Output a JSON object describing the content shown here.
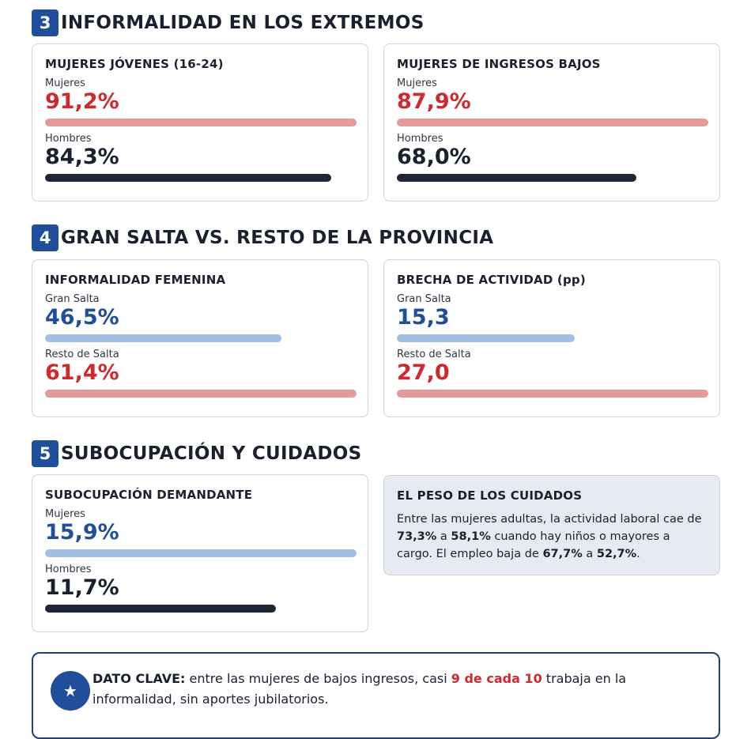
{
  "sections": [
    {
      "number": "3",
      "title": "INFORMALIDAD EN LOS EXTREMOS"
    },
    {
      "number": "4",
      "title": "GRAN SALTA VS. RESTO DE LA PROVINCIA"
    },
    {
      "number": "5",
      "title": "SUBOCUPACIÓN Y CUIDADOS"
    }
  ],
  "cards": {
    "young_women": {
      "title": "MUJERES JÓVENES (16-24)",
      "rows": [
        {
          "label": "Mujeres",
          "value": "91,2%",
          "bar_fraction": 1.0,
          "color": "#d1282d"
        },
        {
          "label": "Hombres",
          "value": "84,3%",
          "bar_fraction": 0.92,
          "color": "#1b2030"
        }
      ]
    },
    "low_income": {
      "title": "MUJERES DE INGRESOS BAJOS",
      "rows": [
        {
          "label": "Mujeres",
          "value": "87,9%",
          "bar_fraction": 1.0,
          "color": "#d1282d"
        },
        {
          "label": "Hombres",
          "value": "68,0%",
          "bar_fraction": 0.77,
          "color": "#1b2030"
        }
      ]
    },
    "female_informality": {
      "title": "INFORMALIDAD FEMENINA",
      "rows": [
        {
          "label": "Gran Salta",
          "value": "46,5%",
          "bar_fraction": 0.76,
          "color": "#1f4e9a"
        },
        {
          "label": "Resto de Salta",
          "value": "61,4%",
          "bar_fraction": 1.0,
          "color": "#d1282d"
        }
      ]
    },
    "activity_gap": {
      "title": "BRECHA DE ACTIVIDAD (pp)",
      "rows": [
        {
          "label": "Gran Salta",
          "value": "15,3",
          "bar_fraction": 0.57,
          "color": "#1f4e9a"
        },
        {
          "label": "Resto de Salta",
          "value": "27,0",
          "bar_fraction": 1.0,
          "color": "#d1282d"
        }
      ]
    },
    "underemployment": {
      "title": "SUBOCUPACIÓN DEMANDANTE",
      "rows": [
        {
          "label": "Mujeres",
          "value": "15,9%",
          "bar_fraction": 1.0,
          "color": "#1f4e9a"
        },
        {
          "label": "Hombres",
          "value": "11,7%",
          "bar_fraction": 0.74,
          "color": "#1b2030"
        }
      ]
    }
  },
  "care_note": {
    "title": "EL PESO DE LOS CUIDADOS",
    "t1": "Entre las mujeres adultas, la actividad laboral cae de ",
    "v1": "73,3%",
    "t2": " a ",
    "v2": "58,1%",
    "t3": " cuando hay niños o mayores a cargo. El empleo baja de ",
    "v3": "67,7%",
    "t4": " a ",
    "v4": "52,7%",
    "t5": "."
  },
  "key_fact": {
    "icon": "star-icon",
    "label": "DATO CLAVE:",
    "t1": " entre las mujeres de bajos ingresos, casi ",
    "highlight": "9 de cada 10",
    "t2": " trabaja en la informalidad, sin aportes jubilatorios."
  },
  "colors": {
    "accent": "#1f4e9a",
    "red": "#d1282d",
    "dark": "#1b2030"
  }
}
